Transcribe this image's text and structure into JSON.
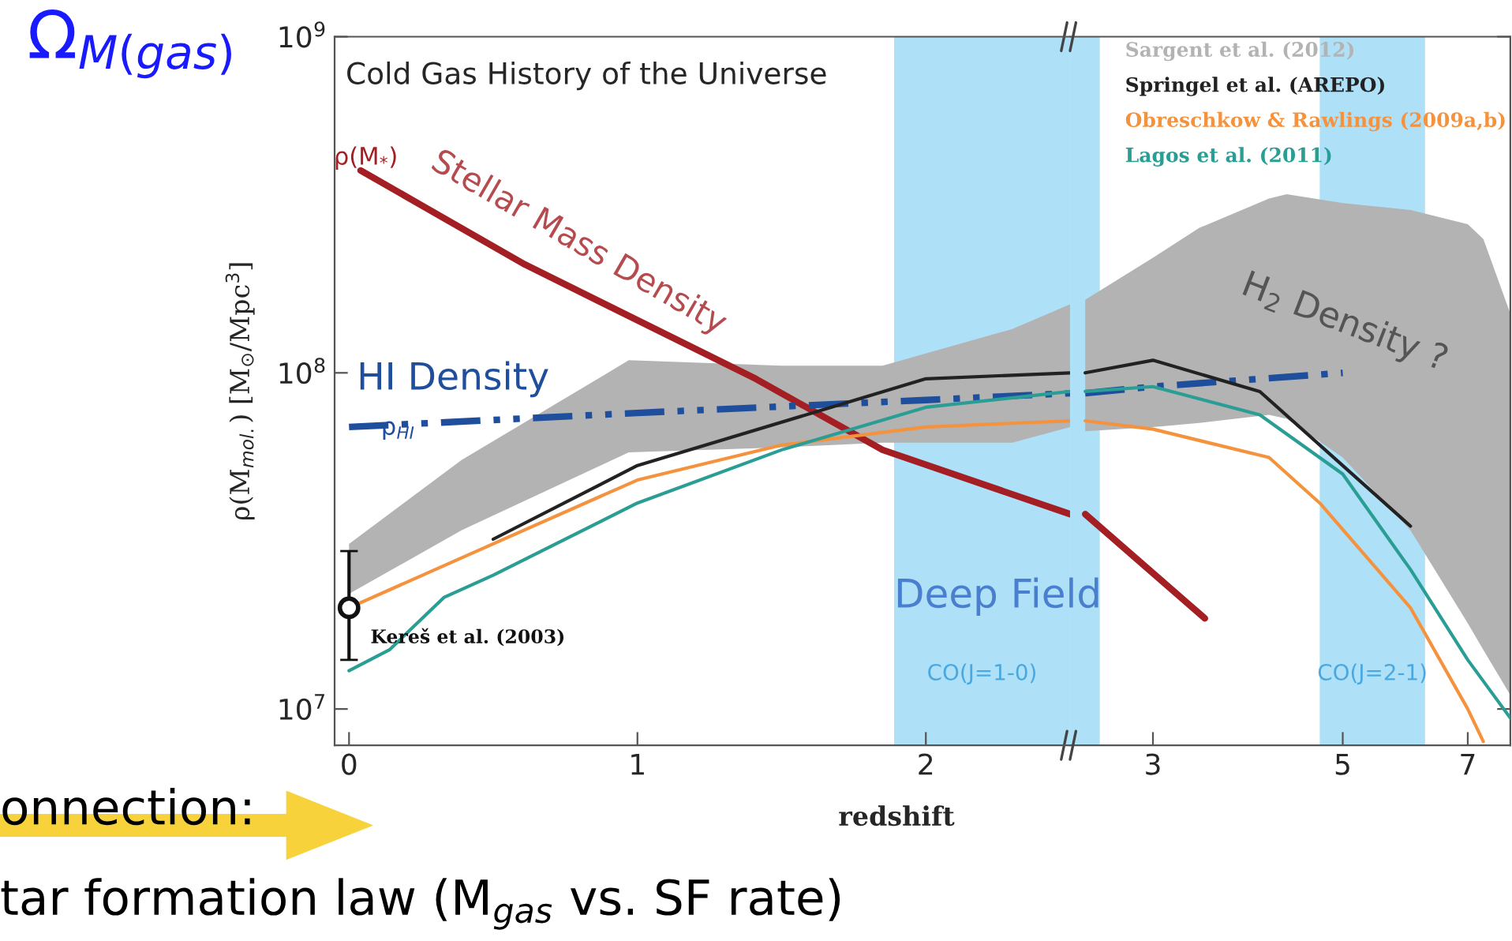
{
  "chart_data": [
    {
      "type": "line",
      "title": "Cold Gas History of the Universe",
      "xlabel": "redshift",
      "ylabel": "ρ(M$_{mol.}$) [M$_{⊙}$/Mpc$^{3}$]",
      "log": "y",
      "xlim": [
        -0.05,
        2.5
      ],
      "xticks": [
        0,
        1,
        2
      ],
      "ylim": [
        7800000.0,
        1000000000.0
      ],
      "yticks": [
        {
          "value": 10000000.0,
          "label": "10$^{7}$"
        },
        {
          "value": 100000000.0,
          "label": "10$^{8}$"
        },
        {
          "value": 1000000000.0,
          "label": "10$^{9}$"
        }
      ],
      "series": [
        {
          "color": "#b3b3b3",
          "x": [
            0,
            0.39,
            0.97,
            1.5,
            1.85,
            2.3,
            2.5
          ],
          "lower": [
            22000000.0,
            34000000.0,
            58000000.0,
            60000000.0,
            62000000.0,
            62000000.0,
            69000000.0
          ],
          "upper": [
            31000000.0,
            55000000.0,
            109000000.0,
            105000000.0,
            105000000.0,
            135000000.0,
            160000000.0
          ],
          "values": [
            null,
            null,
            null,
            null,
            null,
            null,
            null
          ]
        },
        {
          "color": "#a31f24",
          "x": [
            0.04,
            0.61,
            1.41,
            1.85,
            2.5
          ],
          "values": [
            400000000.0,
            210000000.0,
            96000000.0,
            59000000.0,
            38000000.0
          ]
        },
        {
          "color": "#1f4e9c",
          "line_style": "dashdot",
          "x": [
            0,
            1,
            2,
            2.5
          ],
          "values": [
            69000000.0,
            76000000.0,
            83000000.0,
            87000000.0
          ]
        },
        {
          "color": "#222222",
          "x": [
            0.5,
            1,
            2,
            2.5
          ],
          "values": [
            32000000.0,
            53000000.0,
            96000000.0,
            100000000.0
          ]
        },
        {
          "color": "#f5923e",
          "x": [
            0,
            0.5,
            1,
            1.5,
            2,
            2.5
          ],
          "values": [
            20000000.0,
            31000000.0,
            48000000.0,
            61000000.0,
            69000000.0,
            72000000.0
          ]
        },
        {
          "color": "#2a9d94",
          "x": [
            0,
            0.14,
            0.33,
            0.5,
            1,
            1.5,
            2,
            2.5
          ],
          "values": [
            13000000.0,
            15000000.0,
            21500000.0,
            25000000.0,
            41000000.0,
            59000000.0,
            79000000.0,
            88000000.0
          ]
        },
        {
          "type": "scatter",
          "color": "#111111",
          "marker": "circle",
          "x": [
            0
          ],
          "values": [
            20000000.0
          ],
          "errors": [
            [
              14000000.0,
              29500000.0
            ]
          ]
        }
      ],
      "bands": [
        {
          "axis": "x",
          "from": 1.89,
          "to": 2.5,
          "label": "CO(J=1-0)",
          "color": "#aee0f7"
        }
      ],
      "annotations": [
        "ρ(M$_{*}$)",
        "Stellar Mass Density",
        "HI Density",
        "ρ$_{HI}$",
        "Kereš et al. (2003)",
        "Deep Field",
        "Ω$_{M(gas)}$",
        "onnection:",
        "tar formation law (M$_{gas}$ vs. SF rate)"
      ]
    },
    {
      "type": "line",
      "log": "xy",
      "xlim": [
        2.4,
        7.85
      ],
      "xticks": [
        3,
        5,
        7
      ],
      "ylim": [
        7800000.0,
        1000000000.0
      ],
      "yticks": [
        {
          "value": 10000000.0,
          "label": null
        },
        {
          "value": 100000000.0,
          "label": null
        },
        {
          "value": 1000000000.0,
          "label": null
        }
      ],
      "tick_labels": "x",
      "legend": "top right",
      "series": [
        {
          "name": "Sargent et al. (2012)",
          "color": "#b3b3b3",
          "x": [
            2.5,
            3,
            3.4,
            4.1,
            4.3,
            5,
            6,
            7,
            7.3,
            7.85
          ],
          "lower": [
            67000000.0,
            69000000.0,
            71000000.0,
            75000000.0,
            73000000.0,
            56000000.0,
            34000000.0,
            18000000.0,
            15000000.0,
            11000000.0
          ],
          "upper": [
            165000000.0,
            220000000.0,
            270000000.0,
            330000000.0,
            340000000.0,
            320000000.0,
            305000000.0,
            277000000.0,
            250000000.0,
            150000000.0
          ],
          "values": [
            null,
            null,
            null,
            null,
            null,
            null,
            null,
            null,
            null,
            null
          ]
        },
        {
          "color": "#a31f24",
          "x": [
            2.5,
            3.45
          ],
          "values": [
            38000000.0,
            18600000.0
          ]
        },
        {
          "color": "#1f4e9c",
          "line_style": "dashdot",
          "x": [
            2.5,
            3,
            5
          ],
          "values": [
            87000000.0,
            91000000.0,
            100000000.0
          ]
        },
        {
          "name": "Springel et al. (AREPO)",
          "color": "#222222",
          "x": [
            2.5,
            3,
            4,
            6
          ],
          "values": [
            100000000.0,
            109000000.0,
            88000000.0,
            35000000.0
          ]
        },
        {
          "name": "Obreschkow & Rawlings (2009a,b)",
          "color": "#f5923e",
          "x": [
            2.5,
            3,
            4.1,
            4.7,
            6,
            7,
            7.3
          ],
          "values": [
            72000000.0,
            68000000.0,
            56000000.0,
            41000000.0,
            20000000.0,
            10000000.0,
            8000000.0
          ]
        },
        {
          "name": "Lagos et al. (2011)",
          "color": "#2a9d94",
          "x": [
            2.5,
            3,
            4,
            5,
            6,
            7,
            7.85
          ],
          "values": [
            88000000.0,
            91000000.0,
            75000000.0,
            50000000.0,
            26000000.0,
            14000000.0,
            9400000.0
          ]
        }
      ],
      "bands": [
        {
          "axis": "x",
          "from": 2.4,
          "to": 2.6,
          "color": "#aee0f7"
        },
        {
          "axis": "x",
          "from": 4.7,
          "to": 6.24,
          "label": "CO(J=2-1)",
          "color": "#aee0f7"
        }
      ],
      "annotations": [
        "H$_{2}$ Density ?"
      ]
    }
  ]
}
